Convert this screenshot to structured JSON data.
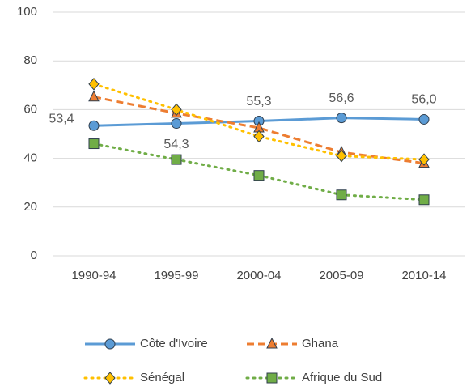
{
  "chart_data": {
    "type": "line",
    "categories": [
      "1990-94",
      "1995-99",
      "2000-04",
      "2005-09",
      "2010-14"
    ],
    "series": [
      {
        "name": "Côte d'Ivoire",
        "color": "#5b9bd5",
        "line_style": "solid",
        "marker": "circle",
        "values": [
          53.4,
          54.3,
          55.3,
          56.6,
          56.0
        ],
        "value_labels": [
          "53,4",
          "54,3",
          "55,3",
          "56,6",
          "56,0"
        ]
      },
      {
        "name": "Ghana",
        "color": "#ed7d31",
        "line_style": "dashed",
        "marker": "triangle",
        "values": [
          65.2,
          58.5,
          52.5,
          42.5,
          38.0
        ]
      },
      {
        "name": "Sénégal",
        "color": "#ffc000",
        "line_style": "dotted",
        "marker": "diamond",
        "values": [
          70.5,
          60.0,
          49.0,
          41.0,
          39.5
        ]
      },
      {
        "name": "Afrique du Sud",
        "color": "#70ad47",
        "line_style": "dotted",
        "marker": "square",
        "values": [
          46.0,
          39.5,
          33.0,
          25.0,
          23.0
        ]
      }
    ],
    "ylim": [
      0,
      100
    ],
    "yticks": [
      0,
      20,
      40,
      60,
      80,
      100
    ],
    "grid": true
  }
}
